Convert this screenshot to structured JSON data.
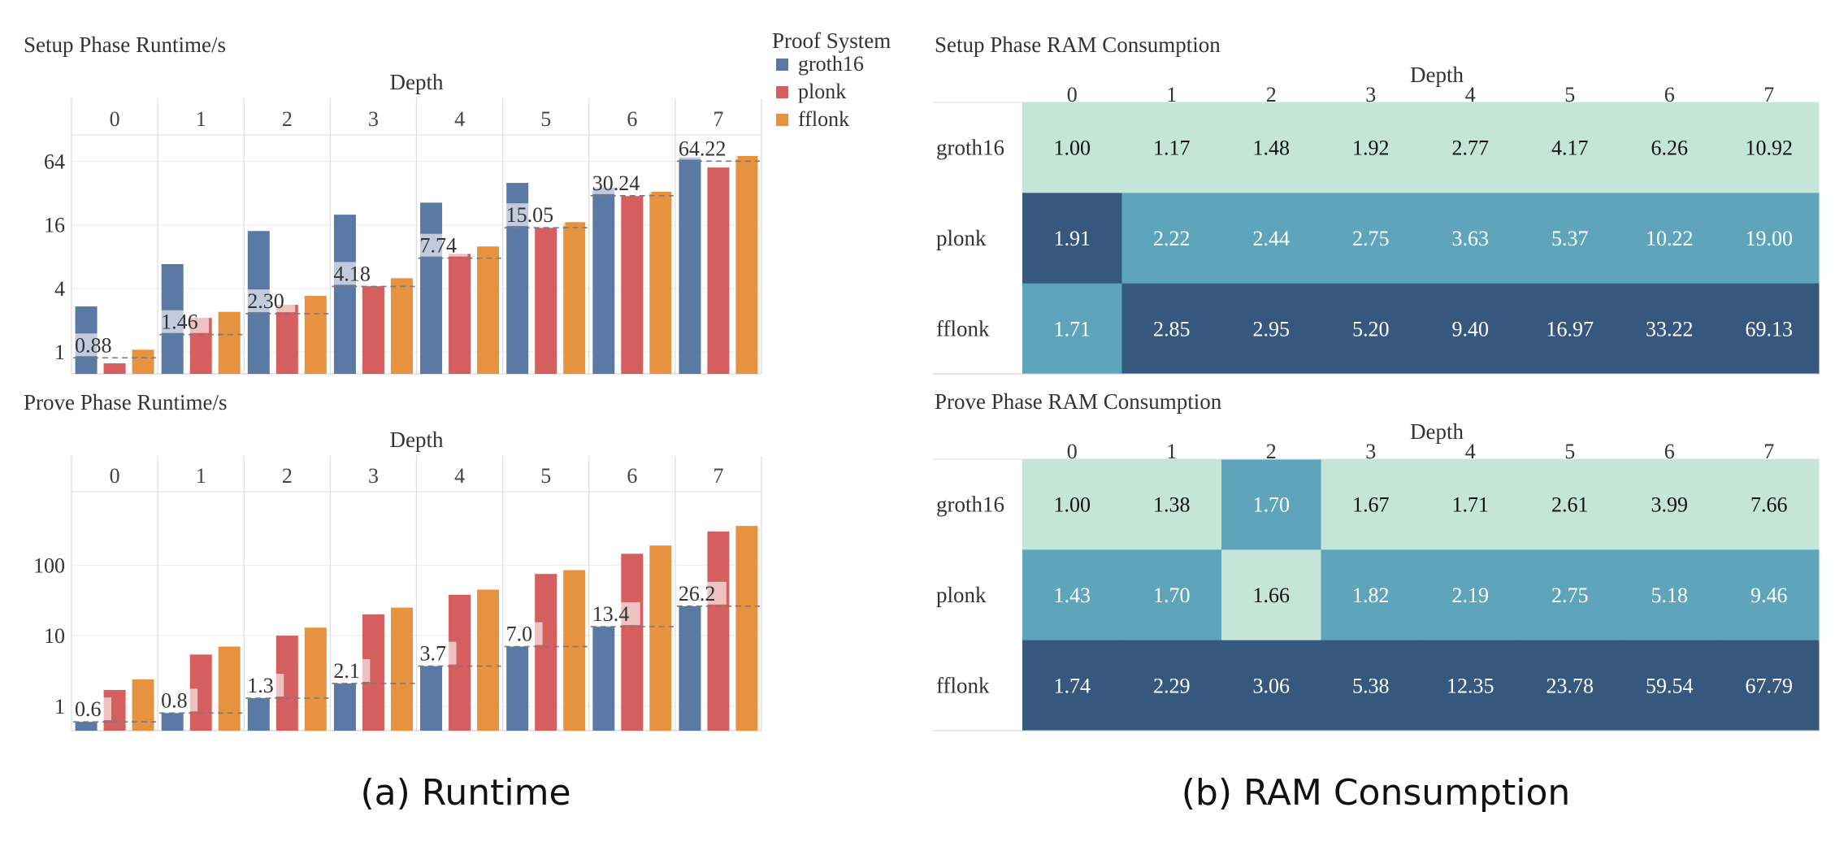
{
  "chart_data": [
    {
      "type": "bar",
      "title": "Setup Phase Runtime/s",
      "facet_label": "Depth",
      "facets": [
        "0",
        "1",
        "2",
        "3",
        "4",
        "5",
        "6",
        "7"
      ],
      "scale": "log2",
      "yticks": [
        1,
        4,
        16,
        64
      ],
      "ylim": [
        0.62,
        114
      ],
      "series": [
        {
          "name": "groth16",
          "values": [
            2.7,
            6.8,
            14.0,
            20.0,
            26.0,
            40.0,
            36.0,
            70.0
          ]
        },
        {
          "name": "plonk",
          "values": [
            0.78,
            2.1,
            2.8,
            4.2,
            8.5,
            15.0,
            30.0,
            56.0
          ]
        },
        {
          "name": "fflonk",
          "values": [
            1.05,
            2.4,
            3.4,
            5.0,
            10.0,
            17.0,
            33.0,
            72.0
          ]
        }
      ],
      "reference_labels": [
        "0.88",
        "1.46",
        "2.30",
        "4.18",
        "7.74",
        "15.05",
        "30.24",
        "64.22"
      ],
      "reference_values": [
        0.88,
        1.46,
        2.3,
        4.18,
        7.74,
        15.05,
        30.24,
        64.22
      ]
    },
    {
      "type": "bar",
      "title": "Prove Phase Runtime/s",
      "facet_label": "Depth",
      "facets": [
        "0",
        "1",
        "2",
        "3",
        "4",
        "5",
        "6",
        "7"
      ],
      "scale": "log10",
      "yticks": [
        1,
        10,
        100
      ],
      "yticklabels": [
        "1",
        "10",
        "100"
      ],
      "ylim": [
        0.45,
        1100
      ],
      "series": [
        {
          "name": "groth16",
          "values": [
            0.6,
            0.8,
            1.3,
            2.1,
            3.7,
            7.0,
            13.4,
            26.2
          ]
        },
        {
          "name": "plonk",
          "values": [
            1.7,
            5.4,
            10.0,
            20.0,
            38.0,
            75.0,
            145.0,
            300.0
          ]
        },
        {
          "name": "fflonk",
          "values": [
            2.4,
            7.0,
            13.0,
            25.0,
            45.0,
            85.0,
            190.0,
            360.0
          ]
        }
      ],
      "reference_labels": [
        "0.6",
        "0.8",
        "1.3",
        "2.1",
        "3.7",
        "7.0",
        "13.4",
        "26.2"
      ],
      "reference_values": [
        0.6,
        0.8,
        1.3,
        2.1,
        3.7,
        7.0,
        13.4,
        26.2
      ]
    },
    {
      "type": "heatmap",
      "title": "Setup Phase RAM Consumption",
      "xlabel": "Depth",
      "x": [
        "0",
        "1",
        "2",
        "3",
        "4",
        "5",
        "6",
        "7"
      ],
      "rows": [
        "groth16",
        "plonk",
        "fflonk"
      ],
      "values": [
        [
          "1.00",
          "1.17",
          "1.48",
          "1.92",
          "2.77",
          "4.17",
          "6.26",
          "10.92"
        ],
        [
          "1.91",
          "2.22",
          "2.44",
          "2.75",
          "3.63",
          "5.37",
          "10.22",
          "19.00"
        ],
        [
          "1.71",
          "2.85",
          "2.95",
          "5.20",
          "9.40",
          "16.97",
          "33.22",
          "69.13"
        ]
      ],
      "color_classes": [
        [
          0,
          0,
          0,
          0,
          0,
          0,
          0,
          0
        ],
        [
          2,
          1,
          1,
          1,
          1,
          1,
          1,
          1
        ],
        [
          1,
          2,
          2,
          2,
          2,
          2,
          2,
          2
        ]
      ]
    },
    {
      "type": "heatmap",
      "title": "Prove Phase RAM Consumption",
      "xlabel": "Depth",
      "x": [
        "0",
        "1",
        "2",
        "3",
        "4",
        "5",
        "6",
        "7"
      ],
      "rows": [
        "groth16",
        "plonk",
        "fflonk"
      ],
      "values": [
        [
          "1.00",
          "1.38",
          "1.70",
          "1.67",
          "1.71",
          "2.61",
          "3.99",
          "7.66"
        ],
        [
          "1.43",
          "1.70",
          "1.66",
          "1.82",
          "2.19",
          "2.75",
          "5.18",
          "9.46"
        ],
        [
          "1.74",
          "2.29",
          "3.06",
          "5.38",
          "12.35",
          "23.78",
          "59.54",
          "67.79"
        ]
      ],
      "color_classes": [
        [
          0,
          0,
          1,
          0,
          0,
          0,
          0,
          0
        ],
        [
          1,
          1,
          0,
          1,
          1,
          1,
          1,
          1
        ],
        [
          2,
          2,
          2,
          2,
          2,
          2,
          2,
          2
        ]
      ]
    }
  ],
  "legend": {
    "title": "Proof System",
    "items": [
      "groth16",
      "plonk",
      "fflonk"
    ]
  },
  "colors": {
    "groth16": "#5a79a5",
    "plonk": "#d55e5e",
    "fflonk": "#e6923f",
    "heat": [
      "#c5e5d9",
      "#5ea5bc",
      "#36587f"
    ]
  },
  "captions": {
    "left": "(a) Runtime",
    "right": "(b) RAM Consumption"
  }
}
